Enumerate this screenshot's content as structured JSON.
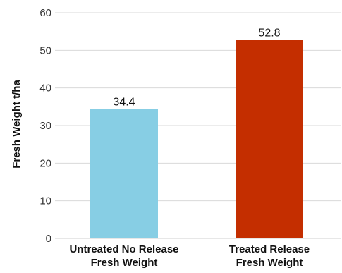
{
  "chart_data": {
    "type": "bar",
    "title": "",
    "xlabel": "",
    "ylabel": "Fresh Weight t/ha",
    "ylim": [
      0,
      60
    ],
    "yticks": [
      0,
      10,
      20,
      30,
      40,
      50,
      60
    ],
    "grid": true,
    "legend": "none",
    "categories": [
      [
        "Untreated No Release",
        "Fresh Weight"
      ],
      [
        "Treated Release",
        "Fresh Weight"
      ]
    ],
    "values": [
      34.4,
      52.8
    ],
    "data_labels": [
      "34.4",
      "52.8"
    ],
    "colors": [
      "#87CEE4",
      "#C42E00"
    ]
  }
}
